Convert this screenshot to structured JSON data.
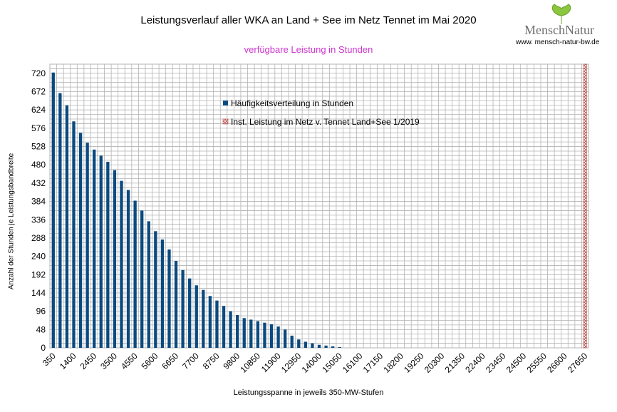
{
  "logo": {
    "brand": "MenschNatur",
    "url": "www. mensch-natur-bw.de",
    "leaf_color": "#8cc63f"
  },
  "chart_data": {
    "type": "bar",
    "title": "Leistungsverlauf aller WKA an Land + See im Netz Tennet im Mai 2020",
    "subtitle": "verfügbare Leistung in Stunden",
    "xlabel": "Leistungsspanne in jeweils 350-MW-Stufen",
    "ylabel": "Anzahl der Stunden je Leistungsbandbreite",
    "ylim": [
      0,
      744
    ],
    "yticks": [
      0,
      48,
      96,
      144,
      192,
      240,
      288,
      336,
      384,
      432,
      480,
      528,
      576,
      624,
      672,
      720
    ],
    "x_step": 350,
    "x_range": [
      350,
      27650
    ],
    "xticks": [
      350,
      1400,
      2450,
      3500,
      4550,
      5600,
      6650,
      7700,
      8750,
      9800,
      10850,
      11900,
      12950,
      14000,
      15050,
      16100,
      17150,
      18200,
      19250,
      20300,
      21350,
      22400,
      23450,
      24500,
      25550,
      26600,
      27650
    ],
    "grid": true,
    "legend_position": "top-center",
    "series": [
      {
        "name": "Häufigkeitsverteilung in Stunden",
        "color": "#0a4a80",
        "x": [
          350,
          700,
          1050,
          1400,
          1750,
          2100,
          2450,
          2800,
          3150,
          3500,
          3850,
          4200,
          4550,
          4900,
          5250,
          5600,
          5950,
          6300,
          6650,
          7000,
          7350,
          7700,
          8050,
          8400,
          8750,
          9100,
          9450,
          9800,
          10150,
          10500,
          10850,
          11200,
          11550,
          11900,
          12250,
          12600,
          12950,
          13300,
          13650,
          14000,
          14350,
          14700,
          15050
        ],
        "values": [
          722,
          668,
          636,
          594,
          564,
          538,
          520,
          504,
          488,
          466,
          438,
          414,
          386,
          360,
          332,
          306,
          284,
          258,
          228,
          204,
          182,
          164,
          152,
          136,
          124,
          110,
          96,
          86,
          78,
          74,
          70,
          66,
          62,
          56,
          48,
          32,
          22,
          16,
          12,
          8,
          6,
          4,
          2
        ]
      },
      {
        "name": "Inst. Leistung im Netz v. Tennet  Land+See 1/2019",
        "color": "#c0504d",
        "x": [
          27650
        ],
        "values": [
          744
        ]
      }
    ]
  }
}
